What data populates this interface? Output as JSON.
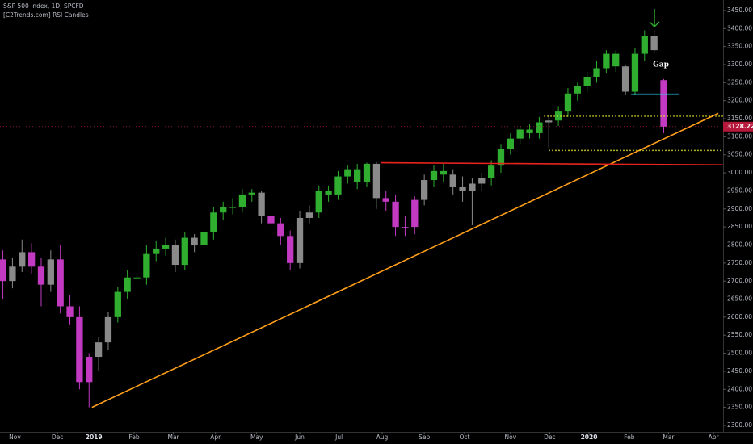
{
  "chart_data": {
    "type": "candlestick",
    "title": "S&P 500 Index, 1D, SPCFD",
    "subtitle": "[C2Trends.com] RSI Candles",
    "annotation": "Gap",
    "last_price": 3128.22,
    "last_price_color": "#b5183a",
    "open": [
      2760,
      2700,
      2740,
      2780,
      2740,
      2690,
      2760,
      2630,
      2600,
      2420,
      2490,
      2530,
      2600,
      2670,
      2710,
      2710,
      2775,
      2790,
      2800,
      2745,
      2820,
      2800,
      2835,
      2890,
      2905,
      2905,
      2940,
      2945,
      2880,
      2860,
      2825,
      2750,
      2875,
      2890,
      2950,
      2940,
      2990,
      3010,
      2975,
      3025,
      2930,
      2920,
      2850,
      2850,
      2925,
      2980,
      3005,
      2995,
      2960,
      2950,
      2970,
      2985,
      3020,
      3065,
      3095,
      3120,
      3110,
      3140,
      3145,
      3170,
      3220,
      3240,
      3265,
      3290,
      3330,
      3295,
      3225,
      3330,
      3380,
      3257
    ],
    "high": [
      2785,
      2765,
      2815,
      2805,
      2765,
      2785,
      2800,
      2660,
      2630,
      2500,
      2545,
      2615,
      2685,
      2730,
      2735,
      2800,
      2810,
      2820,
      2815,
      2835,
      2830,
      2850,
      2905,
      2920,
      2930,
      2955,
      2955,
      2950,
      2890,
      2875,
      2840,
      2895,
      2910,
      2965,
      2965,
      3005,
      3020,
      3025,
      3028,
      3030,
      2950,
      2940,
      2880,
      2935,
      2995,
      3020,
      3025,
      3010,
      2990,
      2985,
      3000,
      3035,
      3080,
      3110,
      3130,
      3135,
      3155,
      3160,
      3185,
      3235,
      3250,
      3280,
      3310,
      3340,
      3340,
      3300,
      3345,
      3395,
      3395,
      3260
    ],
    "low": [
      2650,
      2680,
      2725,
      2720,
      2630,
      2670,
      2610,
      2580,
      2400,
      2350,
      2450,
      2510,
      2585,
      2650,
      2685,
      2690,
      2755,
      2770,
      2725,
      2730,
      2780,
      2785,
      2815,
      2870,
      2885,
      2890,
      2920,
      2860,
      2840,
      2800,
      2730,
      2735,
      2860,
      2875,
      2920,
      2925,
      2970,
      2955,
      2960,
      2900,
      2895,
      2825,
      2825,
      2830,
      2910,
      2960,
      2975,
      2940,
      2920,
      2855,
      2950,
      2965,
      3000,
      3050,
      3080,
      3095,
      3095,
      3070,
      3130,
      3155,
      3200,
      3225,
      3250,
      3275,
      3280,
      3215,
      3215,
      3310,
      3330,
      3110
    ],
    "close": [
      2700,
      2740,
      2780,
      2740,
      2690,
      2760,
      2630,
      2600,
      2420,
      2490,
      2530,
      2600,
      2670,
      2710,
      2710,
      2775,
      2790,
      2800,
      2745,
      2820,
      2800,
      2835,
      2890,
      2905,
      2905,
      2940,
      2945,
      2880,
      2860,
      2825,
      2750,
      2875,
      2890,
      2950,
      2940,
      2990,
      3010,
      2975,
      3025,
      2930,
      2920,
      2850,
      2850,
      2925,
      2980,
      3005,
      2995,
      2960,
      2950,
      2970,
      2985,
      3020,
      3065,
      3095,
      3120,
      3110,
      3140,
      3145,
      3170,
      3220,
      3240,
      3265,
      3290,
      3330,
      3295,
      3225,
      3330,
      3380,
      3340,
      3128
    ],
    "colors": [
      "#c23ac2",
      "#8a8a8a",
      "#8a8a8a",
      "#c23ac2",
      "#c23ac2",
      "#8a8a8a",
      "#c23ac2",
      "#c23ac2",
      "#c23ac2",
      "#c23ac2",
      "#8a8a8a",
      "#8a8a8a",
      "#2fae2f",
      "#2fae2f",
      "#2fae2f",
      "#2fae2f",
      "#2fae2f",
      "#2fae2f",
      "#8a8a8a",
      "#2fae2f",
      "#8a8a8a",
      "#2fae2f",
      "#2fae2f",
      "#2fae2f",
      "#2fae2f",
      "#2fae2f",
      "#2fae2f",
      "#8a8a8a",
      "#c23ac2",
      "#c23ac2",
      "#c23ac2",
      "#8a8a8a",
      "#8a8a8a",
      "#2fae2f",
      "#2fae2f",
      "#2fae2f",
      "#2fae2f",
      "#2fae2f",
      "#2fae2f",
      "#8a8a8a",
      "#c23ac2",
      "#c23ac2",
      "#c23ac2",
      "#c23ac2",
      "#8a8a8a",
      "#2fae2f",
      "#2fae2f",
      "#8a8a8a",
      "#8a8a8a",
      "#8a8a8a",
      "#8a8a8a",
      "#2fae2f",
      "#2fae2f",
      "#2fae2f",
      "#2fae2f",
      "#2fae2f",
      "#2fae2f",
      "#8a8a8a",
      "#2fae2f",
      "#2fae2f",
      "#2fae2f",
      "#2fae2f",
      "#2fae2f",
      "#2fae2f",
      "#2fae2f",
      "#8a8a8a",
      "#2fae2f",
      "#2fae2f",
      "#8a8a8a",
      "#c23ac2"
    ],
    "overlays": [
      {
        "color": "#ff9f1a",
        "style": "solid",
        "x": [
          9.3,
          74.7
        ],
        "y": [
          2350,
          3165
        ]
      },
      {
        "color": "#e8231e",
        "style": "solid",
        "x": [
          39.5,
          75.2
        ],
        "y": [
          3028,
          3022
        ]
      },
      {
        "color": "#e6e62e",
        "style": "dotted",
        "x": [
          56.5,
          75.2
        ],
        "y": [
          3157,
          3157
        ]
      },
      {
        "color": "#e6e62e",
        "style": "dotted",
        "x": [
          57,
          75.2
        ],
        "y": [
          3062,
          3062
        ]
      },
      {
        "color": "#29c6e6",
        "style": "solid",
        "x": [
          65.6,
          70.6
        ],
        "y": [
          3218,
          3218
        ]
      }
    ],
    "xlim": [
      -0.3,
      75.2
    ],
    "xticks": [
      {
        "value": 1.26,
        "label": "Nov"
      },
      {
        "value": 5.7,
        "label": "Dec"
      },
      {
        "value": 9.5,
        "label": "2019"
      },
      {
        "value": 13.7,
        "label": "Feb"
      },
      {
        "value": 17.8,
        "label": "Mar"
      },
      {
        "value": 22.2,
        "label": "Apr"
      },
      {
        "value": 26.5,
        "label": "May"
      },
      {
        "value": 31,
        "label": "Jun"
      },
      {
        "value": 35.1,
        "label": "Jul"
      },
      {
        "value": 39.6,
        "label": "Aug"
      },
      {
        "value": 44,
        "label": "Sep"
      },
      {
        "value": 48.2,
        "label": "Oct"
      },
      {
        "value": 53,
        "label": "Nov"
      },
      {
        "value": 57.1,
        "label": "Dec"
      },
      {
        "value": 61.2,
        "label": "2020"
      },
      {
        "value": 65.4,
        "label": "Feb"
      },
      {
        "value": 69.5,
        "label": "Mar"
      },
      {
        "value": 74.2,
        "label": "Apr"
      }
    ],
    "ylim": [
      2282,
      3479
    ],
    "yticks": [
      {
        "value": 2300,
        "label": "2300.00"
      },
      {
        "value": 2350,
        "label": "2350.00"
      },
      {
        "value": 2400,
        "label": "2400.00"
      },
      {
        "value": 2450,
        "label": "2450.00"
      },
      {
        "value": 2500,
        "label": "2500.00"
      },
      {
        "value": 2550,
        "label": "2550.00"
      },
      {
        "value": 2600,
        "label": "2600.00"
      },
      {
        "value": 2650,
        "label": "2650.00"
      },
      {
        "value": 2700,
        "label": "2700.00"
      },
      {
        "value": 2750,
        "label": "2750.00"
      },
      {
        "value": 2800,
        "label": "2800.00"
      },
      {
        "value": 2850,
        "label": "2850.00"
      },
      {
        "value": 2900,
        "label": "2900.00"
      },
      {
        "value": 2950,
        "label": "2950.00"
      },
      {
        "value": 3000,
        "label": "3000.00"
      },
      {
        "value": 3050,
        "label": "3050.00"
      },
      {
        "value": 3100,
        "label": "3100.00"
      },
      {
        "value": 3150,
        "label": "3150.00"
      },
      {
        "value": 3200,
        "label": "3200.00"
      },
      {
        "value": 3250,
        "label": "3250.00"
      },
      {
        "value": 3300,
        "label": "3300.00"
      },
      {
        "value": 3350,
        "label": "3350.00"
      },
      {
        "value": 3400,
        "label": "3400.00"
      },
      {
        "value": 3450,
        "label": "3450.00"
      }
    ]
  }
}
